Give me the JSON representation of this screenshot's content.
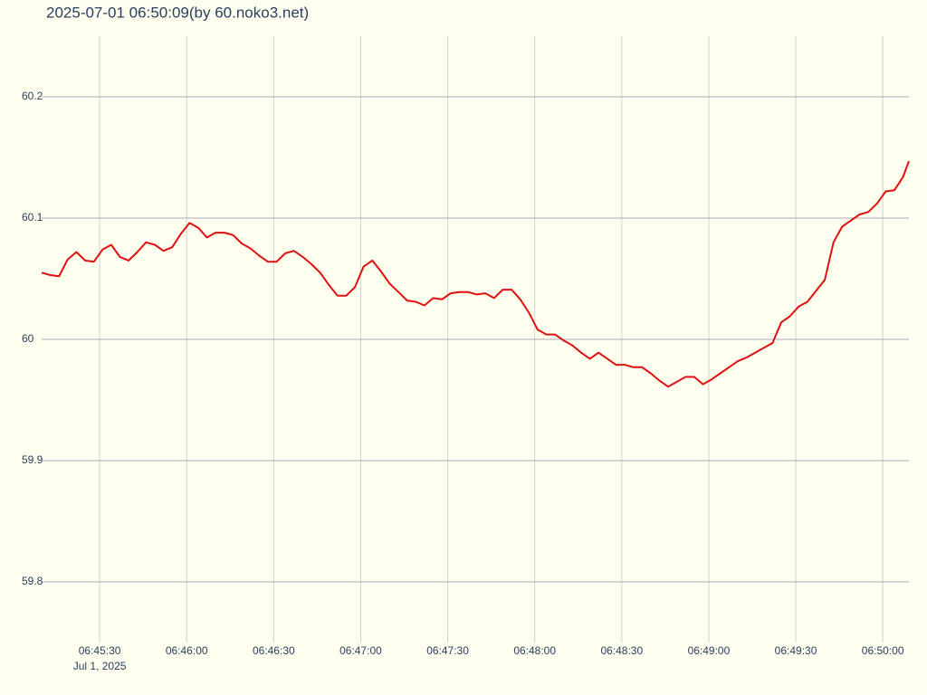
{
  "chart_data": {
    "type": "line",
    "title": "2025-07-01 06:50:09(by 60.noko3.net)",
    "x": [
      "06:45:10",
      "06:45:13",
      "06:45:16",
      "06:45:19",
      "06:45:22",
      "06:45:25",
      "06:45:28",
      "06:45:31",
      "06:45:34",
      "06:45:37",
      "06:45:40",
      "06:45:43",
      "06:45:46",
      "06:45:49",
      "06:45:52",
      "06:45:55",
      "06:45:58",
      "06:46:01",
      "06:46:04",
      "06:46:07",
      "06:46:10",
      "06:46:13",
      "06:46:16",
      "06:46:19",
      "06:46:22",
      "06:46:25",
      "06:46:28",
      "06:46:31",
      "06:46:34",
      "06:46:37",
      "06:46:40",
      "06:46:43",
      "06:46:46",
      "06:46:49",
      "06:46:52",
      "06:46:55",
      "06:46:58",
      "06:47:01",
      "06:47:04",
      "06:47:07",
      "06:47:10",
      "06:47:13",
      "06:47:16",
      "06:47:19",
      "06:47:22",
      "06:47:25",
      "06:47:28",
      "06:47:31",
      "06:47:34",
      "06:47:37",
      "06:47:40",
      "06:47:43",
      "06:47:46",
      "06:47:49",
      "06:47:52",
      "06:47:55",
      "06:47:58",
      "06:48:01",
      "06:48:04",
      "06:48:07",
      "06:48:10",
      "06:48:13",
      "06:48:16",
      "06:48:19",
      "06:48:22",
      "06:48:25",
      "06:48:28",
      "06:48:31",
      "06:48:34",
      "06:48:37",
      "06:48:40",
      "06:48:43",
      "06:48:46",
      "06:48:49",
      "06:48:52",
      "06:48:55",
      "06:48:58",
      "06:49:01",
      "06:49:04",
      "06:49:07",
      "06:49:10",
      "06:49:13",
      "06:49:16",
      "06:49:19",
      "06:49:22",
      "06:49:25",
      "06:49:28",
      "06:49:31",
      "06:49:34",
      "06:49:37",
      "06:49:40",
      "06:49:43",
      "06:49:46",
      "06:49:49",
      "06:49:52",
      "06:49:55",
      "06:49:58",
      "06:50:01",
      "06:50:04",
      "06:50:07",
      "06:50:09"
    ],
    "series": [
      {
        "color": "#dd1111",
        "values": [
          60.055,
          60.053,
          60.052,
          60.066,
          60.072,
          60.065,
          60.064,
          60.074,
          60.078,
          60.068,
          60.065,
          60.072,
          60.08,
          60.078,
          60.073,
          60.076,
          60.087,
          60.096,
          60.092,
          60.084,
          60.088,
          60.088,
          60.086,
          60.079,
          60.075,
          60.069,
          60.064,
          60.064,
          60.071,
          60.073,
          60.068,
          60.062,
          60.055,
          60.045,
          60.036,
          60.036,
          60.043,
          60.06,
          60.065,
          60.056,
          60.046,
          60.039,
          60.032,
          60.031,
          60.028,
          60.034,
          60.033,
          60.038,
          60.039,
          60.039,
          60.037,
          60.038,
          60.034,
          60.041,
          60.041,
          60.033,
          60.022,
          60.008,
          60.004,
          60.004,
          59.999,
          59.995,
          59.989,
          59.984,
          59.989,
          59.984,
          59.979,
          59.979,
          59.977,
          59.977,
          59.972,
          59.966,
          59.961,
          59.965,
          59.969,
          59.969,
          59.963,
          59.967,
          59.972,
          59.977,
          59.982,
          59.985,
          59.989,
          59.993,
          59.997,
          60.014,
          60.019,
          60.027,
          60.031,
          60.04,
          60.049,
          60.08,
          60.093,
          60.098,
          60.103,
          60.105,
          60.112,
          60.122,
          60.123,
          60.134,
          60.147
        ]
      }
    ],
    "xlim": [
      "06:45:10",
      "06:50:09"
    ],
    "xticks": [
      "06:45:30",
      "06:46:00",
      "06:46:30",
      "06:47:00",
      "06:47:30",
      "06:48:00",
      "06:48:30",
      "06:49:00",
      "06:49:30",
      "06:50:00"
    ],
    "x_date_label": "Jul 1, 2025",
    "ylim": [
      59.75,
      60.25
    ],
    "yticks": [
      59.8,
      59.9,
      60,
      60.1,
      60.2
    ],
    "grid": true
  }
}
